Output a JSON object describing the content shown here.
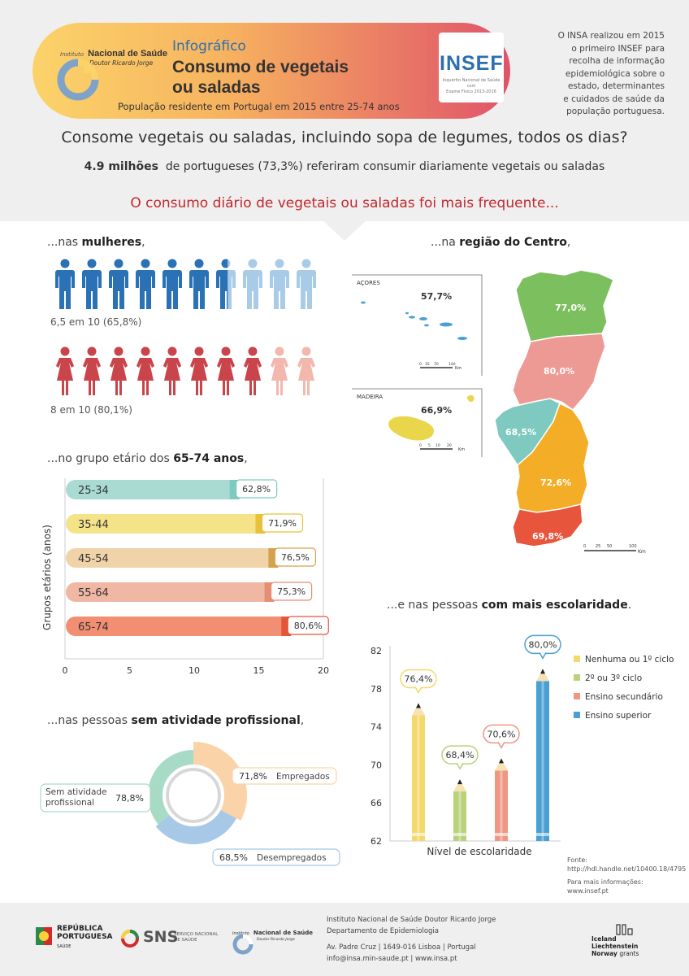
{
  "header": {
    "logo_institute_line1": "Instituto",
    "logo_institute_line2": "Nacional de Saúde",
    "logo_institute_line3": "Doutor Ricardo Jorge",
    "label": "Infográfico",
    "title_line1": "Consumo de vegetais",
    "title_line2": "ou saladas",
    "subtitle": "População residente em Portugal em 2015 entre 25-74 anos",
    "insef_logo": "INSEF",
    "insef_caption_1": "Inquérito Nacional de Saúde com",
    "insef_caption_2": "Exame Físico 2013-2016",
    "note": [
      "O INSA realizou em 2015",
      "o primeiro INSEF para",
      "recolha de informação",
      "epidemiológica sobre o",
      "estado, determinantes",
      "e cuidados de saúde da",
      "população portuguesa."
    ]
  },
  "question": "Consome vegetais ou saladas, incluindo sopa de legumes, todos os dias?",
  "stat_bold": "4.9 milhões",
  "stat_rest": "de portugueses (73,3%) referiram consumir diariamente vegetais ou saladas",
  "highlight": "O consumo diário de vegetais ou saladas foi mais frequente...",
  "sections": {
    "women_prefix": "...nas ",
    "women_bold": "mulheres",
    "women_suffix": ",",
    "region_prefix": "...na ",
    "region_bold": "região do Centro",
    "region_suffix": ",",
    "age_prefix": "...no grupo etário dos ",
    "age_bold": "65-74 anos",
    "age_suffix": ",",
    "edu_prefix": "...e nas pessoas ",
    "edu_bold": "com mais escolaridade",
    "edu_suffix": ".",
    "work_prefix": "...nas pessoas ",
    "work_bold": "sem atividade profissional",
    "work_suffix": ","
  },
  "men_caption": "6,5 em 10 (65,8%)",
  "women_caption": "8 em 10 (80,1%)",
  "colors": {
    "men_dark": "#2a72b5",
    "men_light": "#a8cbe8",
    "women_dark": "#c9444b",
    "women_light": "#f2b8ad",
    "norte": "#7bbf5e",
    "centro": "#ee9a94",
    "lisboa": "#7ec9c0",
    "alentejo": "#f3ad27",
    "algarve": "#e8553d"
  },
  "chart_data": [
    {
      "type": "pictogram",
      "categories": [
        "Homens",
        "Mulheres"
      ],
      "values": [
        65.8,
        80.1
      ],
      "units": "%"
    },
    {
      "type": "map",
      "regions": [
        {
          "name": "Açores",
          "value": 57.7,
          "label": "AÇORES"
        },
        {
          "name": "Madeira",
          "value": 66.9,
          "label": "MADEIRA"
        },
        {
          "name": "Norte",
          "value": 77.0
        },
        {
          "name": "Centro",
          "value": 80.0
        },
        {
          "name": "Lisboa",
          "value": 68.5
        },
        {
          "name": "Alentejo",
          "value": 72.6
        },
        {
          "name": "Algarve",
          "value": 69.8
        }
      ],
      "value_labels": [
        "57,7%",
        "66,9%",
        "77,0%",
        "80,0%",
        "68,5%",
        "72,6%",
        "69,8%"
      ],
      "scale_azores": [
        "0",
        "35",
        "70",
        "140"
      ],
      "scale_madeira": [
        "0",
        "5",
        "10",
        "20"
      ],
      "scale_mainland": [
        "0",
        "25",
        "50",
        "100"
      ],
      "scale_unit": "Km"
    },
    {
      "type": "bar",
      "orientation": "horizontal",
      "ylabel": "Grupos etários (anos)",
      "categories": [
        "25-34",
        "35-44",
        "45-54",
        "55-64",
        "65-74"
      ],
      "values": [
        62.8,
        71.9,
        76.5,
        75.3,
        80.6
      ],
      "value_labels": [
        "62,8%",
        "71,9%",
        "76,5%",
        "75,3%",
        "80,6%"
      ],
      "bar_lengths": [
        13.5,
        15.5,
        16.5,
        16.2,
        17.5
      ],
      "x_ticks": [
        "0",
        "5",
        "10",
        "15",
        "20"
      ],
      "xlim": [
        0,
        20
      ],
      "colors": [
        "#aadbd3",
        "#f5e389",
        "#f0d3a8",
        "#efb7a4",
        "#f28f73"
      ],
      "accent_colors": [
        "#7ec9c0",
        "#e8c23a",
        "#d6a14c",
        "#e58e73",
        "#e4553a"
      ]
    },
    {
      "type": "bar",
      "style": "pencil",
      "xlabel": "Nível de escolaridade",
      "categories": [
        "Nenhuma ou 1º ciclo",
        "2º ou 3º ciclo",
        "Ensino secundário",
        "Ensino superior"
      ],
      "values": [
        76.4,
        68.4,
        70.6,
        80.0
      ],
      "value_labels": [
        "76,4%",
        "68,4%",
        "70,6%",
        "80,0%"
      ],
      "y_ticks": [
        "82",
        "78",
        "74",
        "70",
        "66",
        "62"
      ],
      "ylim": [
        62,
        82
      ],
      "colors": [
        "#f4d86a",
        "#b9d27a",
        "#ee9783",
        "#4aa0d5"
      ],
      "legend": "right"
    },
    {
      "type": "pie",
      "style": "donut",
      "categories": [
        "Sem atividade profissional",
        "Empregados",
        "Desempregados"
      ],
      "values": [
        78.8,
        71.8,
        68.5
      ],
      "value_labels": [
        "78,8%",
        "71,8%",
        "68,5%"
      ],
      "colors": [
        "#a8dbc6",
        "#fbd3a8",
        "#a8c8e8"
      ]
    }
  ],
  "source": {
    "label": "Fonte:",
    "url": "http://hdl.handle.net/10400.18/4795",
    "more_label": "Para mais informações:",
    "more_url": "www.insef.pt"
  },
  "footer": {
    "republica_1": "REPÚBLICA",
    "republica_2": "PORTUGUESA",
    "republica_3": "SAÚDE",
    "sns": "SNS",
    "sns_sub_1": "SERVIÇO NACIONAL",
    "sns_sub_2": "DE SAÚDE",
    "insa_1": "Instituto",
    "insa_2": "Nacional de Saúde",
    "insa_3": "Doutor Ricardo Jorge",
    "addr_1": "Instituto Nacional de Saúde Doutor Ricardo Jorge",
    "addr_2": "Departamento de Epidemiologia",
    "addr_3": "Av. Padre Cruz  |  1649-016 Lisboa  |  Portugal",
    "addr_4": "info@insa.min-saude.pt  |  www.insa.pt",
    "eea_1": "Iceland",
    "eea_2": "Liechtenstein",
    "eea_3": "Norway",
    "eea_4": "grants"
  }
}
